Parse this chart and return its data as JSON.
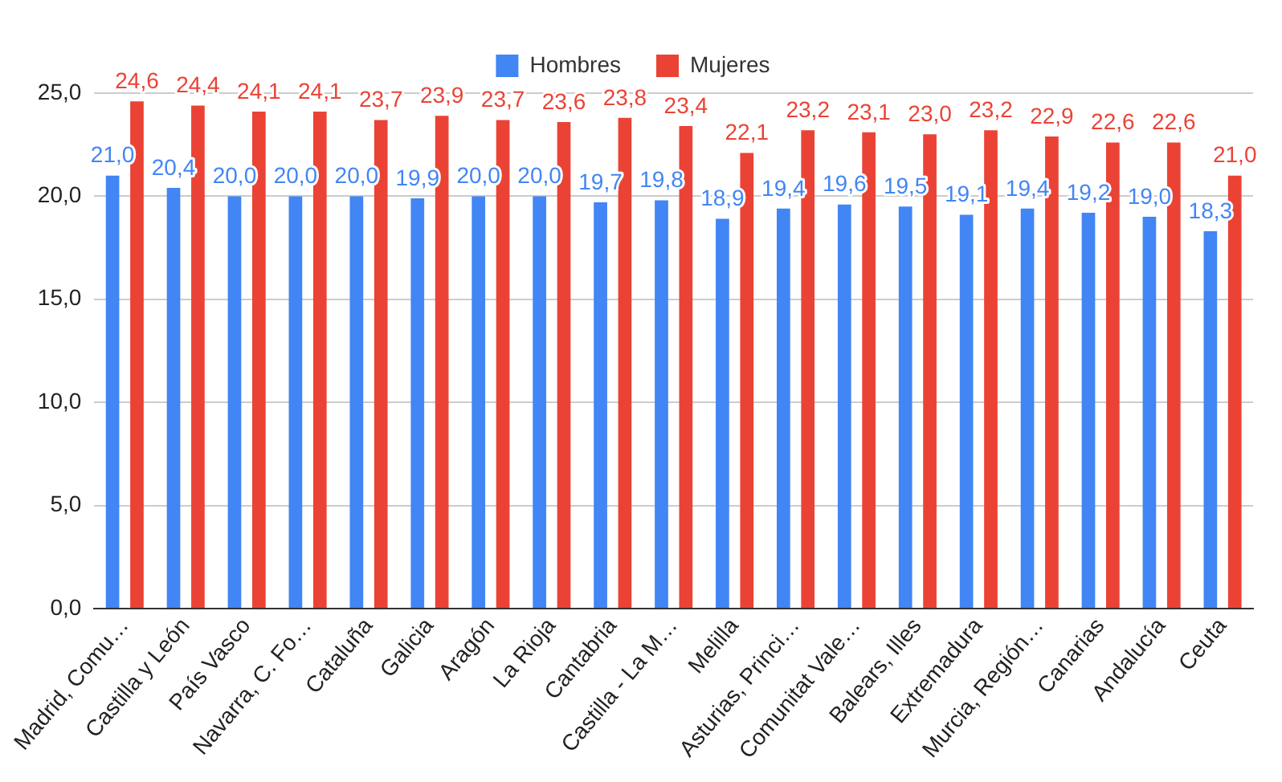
{
  "chart_data": {
    "type": "bar",
    "categories": [
      "Madrid, Comu…",
      "Castilla y León",
      "País Vasco",
      "Navarra, C. Fo…",
      "Cataluña",
      "Galicia",
      "Aragón",
      "La Rioja",
      "Cantabria",
      "Castilla - La M…",
      "Melilla",
      "Asturias, Princi…",
      "Comunitat Vale…",
      "Balears, Illes",
      "Extremadura",
      "Murcia, Región…",
      "Canarias",
      "Andalucía",
      "Ceuta"
    ],
    "series": [
      {
        "name": "Hombres",
        "color": "#4285f4",
        "values": [
          21.0,
          20.4,
          20.0,
          20.0,
          20.0,
          19.9,
          20.0,
          20.0,
          19.7,
          19.8,
          18.9,
          19.4,
          19.6,
          19.5,
          19.1,
          19.4,
          19.2,
          19.0,
          18.3
        ],
        "value_labels": [
          "21,0",
          "20,4",
          "20,0",
          "20,0",
          "20,0",
          "19,9",
          "20,0",
          "20,0",
          "19,7",
          "19,8",
          "18,9",
          "19,4",
          "19,6",
          "19,5",
          "19,1",
          "19,4",
          "19,2",
          "19,0",
          "18,3"
        ]
      },
      {
        "name": "Mujeres",
        "color": "#ea4335",
        "values": [
          24.6,
          24.4,
          24.1,
          24.1,
          23.7,
          23.9,
          23.7,
          23.6,
          23.8,
          23.4,
          22.1,
          23.2,
          23.1,
          23.0,
          23.2,
          22.9,
          22.6,
          22.6,
          21.0
        ],
        "value_labels": [
          "24,6",
          "24,4",
          "24,1",
          "24,1",
          "23,7",
          "23,9",
          "23,7",
          "23,6",
          "23,8",
          "23,4",
          "22,1",
          "23,2",
          "23,1",
          "23,0",
          "23,2",
          "22,9",
          "22,6",
          "22,6",
          "21,0"
        ]
      }
    ],
    "ylim": [
      0,
      25
    ],
    "yticks": [
      {
        "value": 0,
        "label": "0,0"
      },
      {
        "value": 5,
        "label": "5,0"
      },
      {
        "value": 10,
        "label": "10,0"
      },
      {
        "value": 15,
        "label": "15,0"
      },
      {
        "value": 20,
        "label": "20,0"
      },
      {
        "value": 25,
        "label": "25,0"
      }
    ],
    "grid": "y",
    "legend": "top"
  }
}
